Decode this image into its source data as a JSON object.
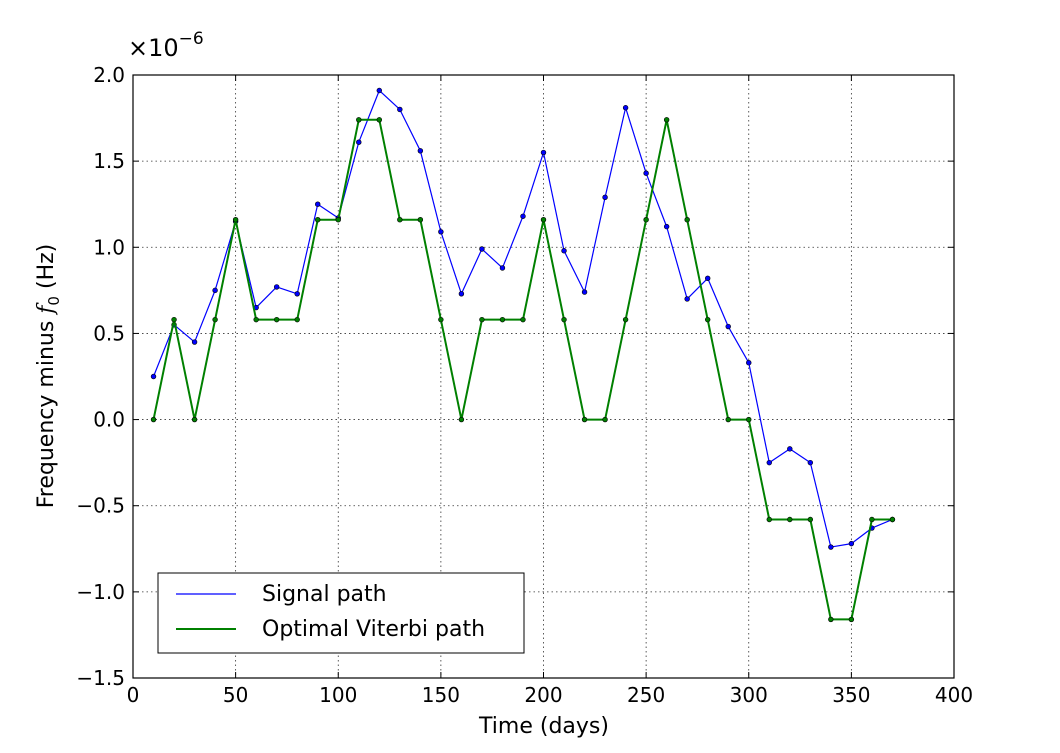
{
  "chart_data": {
    "type": "line",
    "xlabel": "Time (days)",
    "ylabel_text": "Frequency minus",
    "ylabel_symbol": "f",
    "ylabel_subscript": "0",
    "ylabel_unit": "(Hz)",
    "y_multiplier_base": "×10",
    "y_multiplier_exponent": "−6",
    "xlim": [
      0,
      400
    ],
    "ylim": [
      -1.5,
      2.0
    ],
    "x_ticks": [
      0,
      50,
      100,
      150,
      200,
      250,
      300,
      350,
      400
    ],
    "x_tick_labels": [
      "0",
      "50",
      "100",
      "150",
      "200",
      "250",
      "300",
      "350",
      "400"
    ],
    "y_ticks": [
      -1.5,
      -1.0,
      -0.5,
      0.0,
      0.5,
      1.0,
      1.5,
      2.0
    ],
    "y_tick_labels": [
      "−1.5",
      "−1.0",
      "−0.5",
      "0.0",
      "0.5",
      "1.0",
      "1.5",
      "2.0"
    ],
    "grid": true,
    "legend_position": "lower-left",
    "x": [
      10,
      20,
      30,
      40,
      50,
      60,
      70,
      80,
      90,
      100,
      110,
      120,
      130,
      140,
      150,
      160,
      170,
      180,
      190,
      200,
      210,
      220,
      230,
      240,
      250,
      260,
      270,
      280,
      290,
      300,
      310,
      320,
      330,
      340,
      350,
      360,
      370
    ],
    "series": [
      {
        "name": "Signal path",
        "color": "#0000ff",
        "values": [
          0.25,
          0.55,
          0.45,
          0.75,
          1.15,
          0.65,
          0.77,
          0.73,
          1.25,
          1.17,
          1.61,
          1.91,
          1.8,
          1.56,
          1.09,
          0.73,
          0.99,
          0.88,
          1.18,
          1.55,
          0.98,
          0.74,
          1.29,
          1.81,
          1.43,
          1.12,
          0.7,
          0.82,
          0.54,
          0.33,
          -0.25,
          -0.17,
          -0.25,
          -0.74,
          -0.72,
          -0.63,
          -0.58
        ]
      },
      {
        "name": "Optimal Viterbi path",
        "color": "#008000",
        "values": [
          0.0,
          0.58,
          0.0,
          0.58,
          1.16,
          0.58,
          0.58,
          0.58,
          1.16,
          1.16,
          1.74,
          1.74,
          1.16,
          1.16,
          0.58,
          0.0,
          0.58,
          0.58,
          0.58,
          1.16,
          0.58,
          0.0,
          0.0,
          0.58,
          1.16,
          1.74,
          1.16,
          0.58,
          0.0,
          0.0,
          -0.58,
          -0.58,
          -0.58,
          -1.16,
          -1.16,
          -0.58,
          -0.58
        ]
      }
    ]
  }
}
